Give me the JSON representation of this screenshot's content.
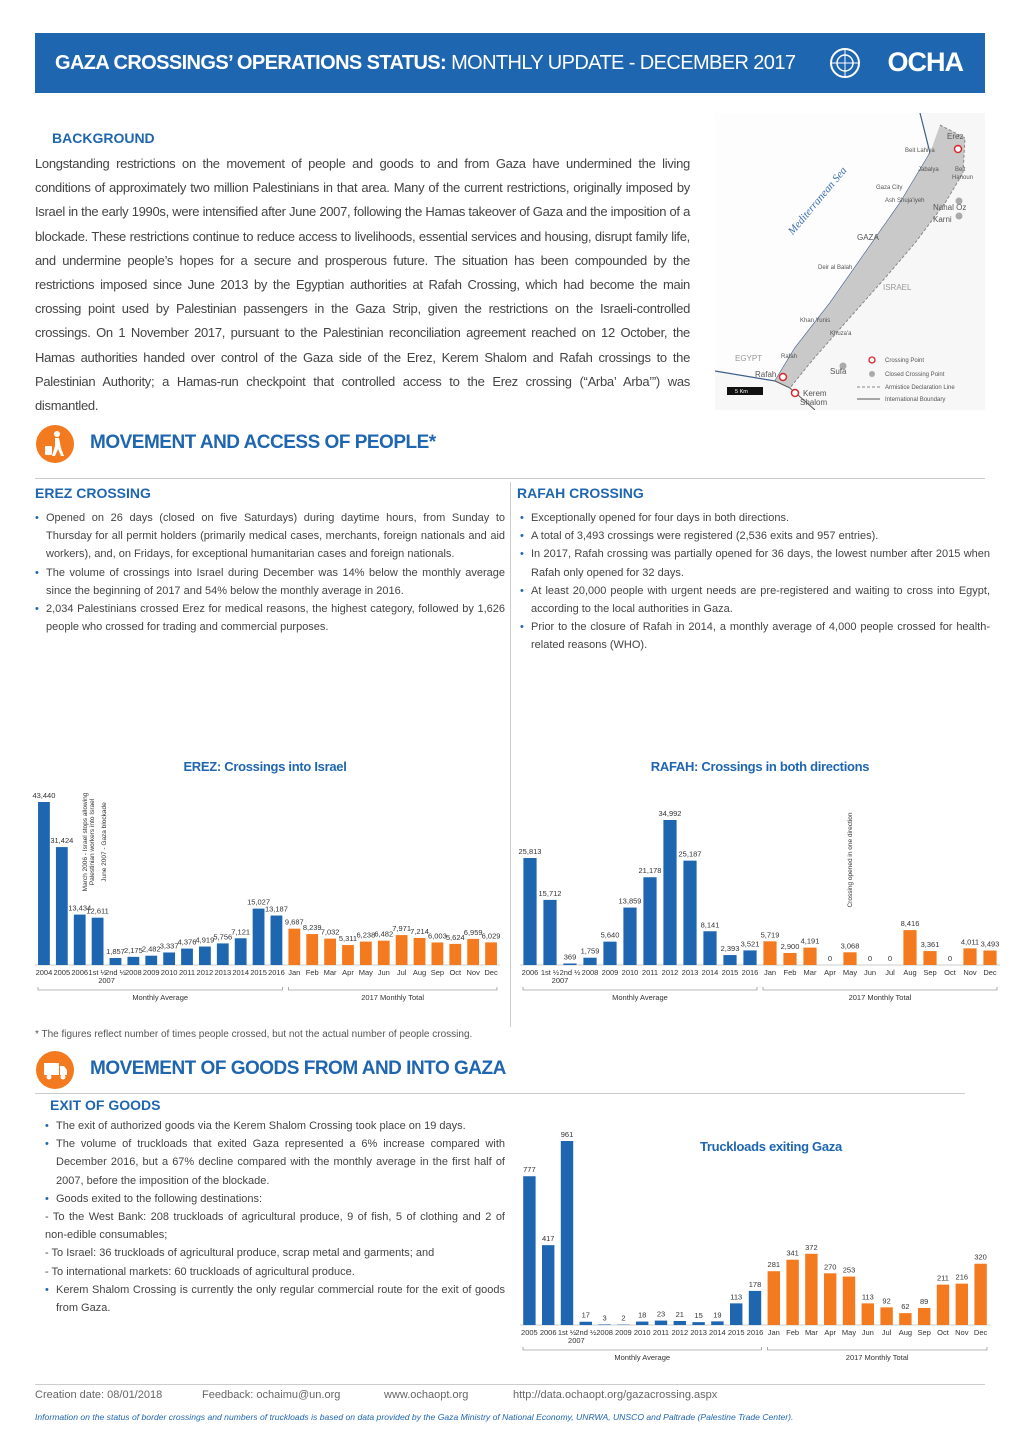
{
  "header": {
    "title_bold": "GAZA CROSSINGS’ OPERATIONS STATUS:",
    "title_rest": " MONTHLY UPDATE - DECEMBER 2017",
    "logo": "OCHA"
  },
  "background": {
    "title": "BACKGROUND",
    "text": "Longstanding restrictions on the movement of people and goods to and from Gaza have undermined the living conditions of approximately two million Palestinians in that area. Many of the current restrictions, originally imposed by Israel in the early 1990s, were intensified after June 2007, following the Hamas takeover of Gaza and the imposition of a blockade. These restrictions continue to reduce access to livelihoods, essential services and housing, disrupt family life, and undermine people’s hopes for a secure and prosperous future. The situation has been compounded by the restrictions imposed since June 2013 by the Egyptian authorities at Rafah Crossing, which had become the main crossing point used by Palestinian passengers in the Gaza Strip, given the restrictions on the Israeli-controlled crossings. On 1 November 2017, pursuant to the Palestinian reconciliation agreement reached on 12 October, the Hamas authorities handed over control of the Gaza side of the Erez, Kerem Shalom and Rafah crossings to the Palestinian Authority; a Hamas-run checkpoint that controlled access to the Erez crossing (“Arba’ Arba’”) was dismantled."
  },
  "map": {
    "labels": [
      "Erez",
      "Beit Lahiya",
      "Jabalya",
      "Beit",
      "Hanoun",
      "Mediterranean Sea",
      "Gaza City",
      "Ash Shuja'iyeh",
      "Nahal Oz",
      "Karni",
      "GAZA",
      "Deir al Balah",
      "ISRAEL",
      "Khan Yunis",
      "Khuza'a",
      "EGYPT",
      "Rafah",
      "Rafah",
      "Sufa",
      "Kerem",
      "Shalom",
      "5 Km"
    ],
    "legend": [
      "Crossing Point",
      "Closed Crossing Point",
      "Armistice Declaration Line",
      "International Boundary"
    ]
  },
  "people": {
    "title": "MOVEMENT AND ACCESS OF PEOPLE*",
    "erez": {
      "title": "EREZ CROSSING",
      "items": [
        "Opened on 26 days (closed on five Saturdays) during daytime hours, from Sunday to Thursday for all permit holders (primarily medical cases, merchants, foreign nationals and aid workers), and, on Fridays, for exceptional humanitarian cases and foreign nationals.",
        "The volume of crossings into Israel during December was 14% below the monthly average since the beginning of 2017 and 54% below the monthly average in 2016.",
        "2,034 Palestinians crossed Erez for medical reasons, the highest category, followed by 1,626 people who crossed for trading and commercial purposes."
      ]
    },
    "rafah": {
      "title": "RAFAH CROSSING",
      "items": [
        "Exceptionally opened for four days in both directions.",
        "A total of 3,493 crossings were registered (2,536 exits and 957 entries).",
        "In 2017, Rafah crossing was partially opened for 36 days, the lowest number after 2015 when Rafah only opened for 32 days.",
        "At least 20,000 people with urgent needs are pre-registered and waiting to cross into Egypt, according to the local authorities in Gaza.",
        "Prior to the closure of Rafah in 2014, a monthly average of 4,000 people crossed for health-related reasons (WHO)."
      ]
    },
    "footnote": "* The figures reflect number of times people crossed, but not the actual number of people crossing."
  },
  "goods": {
    "title": "MOVEMENT OF GOODS FROM AND INTO GAZA",
    "subtitle": "EXIT OF GOODS",
    "items": [
      "The exit of authorized goods via the Kerem Shalom Crossing took place on 19 days.",
      "The volume of truckloads that exited Gaza represented a 6% increase compared with December 2016, but a 67% decline compared with the monthly average in the first half of 2007, before the imposition of the blockade.",
      "Goods exited to the following destinations:",
      "- To the West Bank: 208 truckloads of agricultural produce, 9 of fish, 5 of clothing and 2 of non-edible consumables;",
      "- To Israel: 36 truckloads of agricultural produce, scrap metal and garments; and",
      "- To international markets: 60 truckloads of agricultural produce.",
      "Kerem Shalom Crossing is currently the only regular commercial route for the exit of goods from Gaza."
    ]
  },
  "chart_data": [
    {
      "type": "bar",
      "title": "EREZ: Crossings into Israel",
      "categories": [
        "2004",
        "2005",
        "2006",
        "1st ½",
        "2nd ½",
        "2008",
        "2009",
        "2010",
        "2011",
        "2012",
        "2013",
        "2014",
        "2015",
        "2016",
        "Jan",
        "Feb",
        "Mar",
        "Apr",
        "May",
        "Jun",
        "Jul",
        "Aug",
        "Sep",
        "Oct",
        "Nov",
        "Dec"
      ],
      "x_sublabel": "2007",
      "annotations": [
        "March 2006 - Israel stops allowing",
        "Palestinian workers into Israel",
        "June 2007 - Gaza blockade"
      ],
      "series": [
        {
          "name": "Monthly Average",
          "color": "#1f66b0",
          "values": [
            43440,
            31424,
            13434,
            12611,
            1857,
            2175,
            2482,
            3337,
            4376,
            4919,
            5756,
            7121,
            15027,
            13187,
            null,
            null,
            null,
            null,
            null,
            null,
            null,
            null,
            null,
            null,
            null,
            null
          ],
          "value_labels": [
            "43,440",
            "31,424",
            "13,434",
            "12,611",
            "1,857",
            "2,175",
            "2,482",
            "3,337",
            "4,376",
            "4,919",
            "5,756",
            "7,121",
            "15,027",
            "13,187",
            null,
            null,
            null,
            null,
            null,
            null,
            null,
            null,
            null,
            null,
            null,
            null
          ]
        },
        {
          "name": "2017 Monthly Total",
          "color": "#f47a20",
          "values": [
            null,
            null,
            null,
            null,
            null,
            null,
            null,
            null,
            null,
            null,
            null,
            null,
            null,
            null,
            9687,
            8239,
            7032,
            5311,
            6238,
            6482,
            7971,
            7214,
            6003,
            5624,
            6959,
            6029
          ],
          "value_labels": [
            null,
            null,
            null,
            null,
            null,
            null,
            null,
            null,
            null,
            null,
            null,
            null,
            null,
            null,
            "9,687",
            "8,239",
            "7,032",
            "5,311",
            "6,238",
            "6,482",
            "7,971",
            "7,214",
            "6,003",
            "5,624",
            "6,959",
            "6,029"
          ]
        }
      ]
    },
    {
      "type": "bar",
      "title": "RAFAH: Crossings in both directions",
      "categories": [
        "2006",
        "1st ½",
        "2nd ½",
        "2008",
        "2009",
        "2010",
        "2011",
        "2012",
        "2013",
        "2014",
        "2015",
        "2016",
        "Jan",
        "Feb",
        "Mar",
        "Apr",
        "May",
        "Jun",
        "Jul",
        "Aug",
        "Sep",
        "Oct",
        "Nov",
        "Dec"
      ],
      "x_sublabel": "2007",
      "annotations": [
        "Crossing opened in one direction"
      ],
      "series": [
        {
          "name": "Monthly Average",
          "color": "#1f66b0",
          "values": [
            25813,
            15712,
            369,
            1759,
            5640,
            13859,
            21178,
            34992,
            25187,
            8141,
            2393,
            3521,
            null,
            null,
            null,
            null,
            null,
            null,
            null,
            null,
            null,
            null,
            null,
            null
          ],
          "value_labels": [
            "25,813",
            "15,712",
            "369",
            "1,759",
            "5,640",
            "13,859",
            "21,178",
            "34,992",
            "25,187",
            "8,141",
            "2,393",
            "3,521",
            null,
            null,
            null,
            null,
            null,
            null,
            null,
            null,
            null,
            null,
            null,
            null
          ]
        },
        {
          "name": "2017 Monthly Total",
          "color": "#f47a20",
          "values": [
            null,
            null,
            null,
            null,
            null,
            null,
            null,
            null,
            null,
            null,
            null,
            null,
            5719,
            2900,
            4191,
            0,
            3068,
            0,
            0,
            8416,
            3361,
            0,
            4011,
            3493
          ],
          "value_labels": [
            null,
            null,
            null,
            null,
            null,
            null,
            null,
            null,
            null,
            null,
            null,
            null,
            "5,719",
            "2,900",
            "4,191",
            "0",
            "3,068",
            "0",
            "0",
            "8,416",
            "3,361",
            "0",
            "4,011",
            "3,493"
          ]
        }
      ]
    },
    {
      "type": "bar",
      "title": "Truckloads exiting Gaza",
      "categories": [
        "2005",
        "2006",
        "1st ½",
        "2nd ½",
        "2008",
        "2009",
        "2010",
        "2011",
        "2012",
        "2013",
        "2014",
        "2015",
        "2016",
        "Jan",
        "Feb",
        "Mar",
        "Apr",
        "May",
        "Jun",
        "Jul",
        "Aug",
        "Sep",
        "Oct",
        "Nov",
        "Dec"
      ],
      "x_sublabel": "2007",
      "series": [
        {
          "name": "Monthly Average",
          "color": "#1f66b0",
          "values": [
            777,
            417,
            961,
            17,
            3,
            2,
            18,
            23,
            21,
            15,
            19,
            113,
            178,
            null,
            null,
            null,
            null,
            null,
            null,
            null,
            null,
            null,
            null,
            null,
            null
          ]
        },
        {
          "name": "2017 Monthly Total",
          "color": "#f47a20",
          "values": [
            null,
            null,
            null,
            null,
            null,
            null,
            null,
            null,
            null,
            null,
            null,
            null,
            null,
            281,
            341,
            372,
            270,
            253,
            113,
            92,
            62,
            89,
            211,
            216,
            320
          ]
        }
      ]
    }
  ],
  "footer": {
    "created": "Creation date:  08/01/2018",
    "feedback": "Feedback: ochaimu@un.org",
    "site": "www.ochaopt.org",
    "url": "http://data.ochaopt.org/gazacrossing.aspx",
    "note": "Information on the status of border crossings and numbers of truckloads is based on data provided by the Gaza Ministry of National Economy, UNRWA, UNSCO and Paltrade (Palestine Trade Center)."
  }
}
